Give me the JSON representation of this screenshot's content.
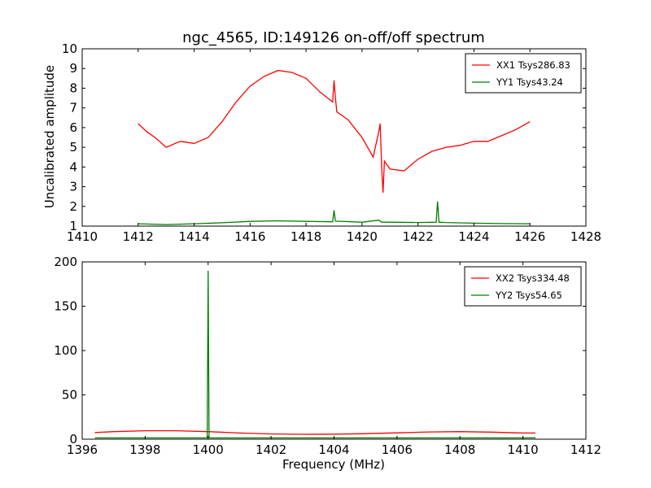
{
  "chart_data": [
    {
      "type": "line",
      "title": "ngc_4565, ID:149126 on-off/off spectrum",
      "xlabel": "",
      "ylabel": "Uncalibrated amplitude",
      "xlim": [
        1410,
        1428
      ],
      "ylim": [
        1,
        10
      ],
      "xticks": [
        1410,
        1412,
        1414,
        1416,
        1418,
        1420,
        1422,
        1424,
        1426,
        1428
      ],
      "yticks": [
        1,
        2,
        3,
        4,
        5,
        6,
        7,
        8,
        9,
        10
      ],
      "legend_position": "top-right",
      "series": [
        {
          "name": "XX1 Tsys286.83",
          "color": "#ff0000",
          "x": [
            1412.0,
            1412.3,
            1412.6,
            1413.0,
            1413.5,
            1414.0,
            1414.5,
            1415.0,
            1415.5,
            1416.0,
            1416.5,
            1417.0,
            1417.5,
            1418.0,
            1418.5,
            1418.95,
            1419.0,
            1419.05,
            1419.1,
            1419.5,
            1420.0,
            1420.4,
            1420.6,
            1420.65,
            1420.7,
            1420.75,
            1420.8,
            1421.0,
            1421.5,
            1422.0,
            1422.5,
            1423.0,
            1423.5,
            1424.0,
            1424.5,
            1425.0,
            1425.5,
            1426.0
          ],
          "values": [
            6.2,
            5.8,
            5.5,
            5.0,
            5.3,
            5.2,
            5.5,
            6.3,
            7.3,
            8.1,
            8.6,
            8.9,
            8.8,
            8.5,
            7.8,
            7.3,
            8.4,
            7.5,
            6.8,
            6.4,
            5.5,
            4.5,
            5.8,
            6.2,
            4.0,
            2.7,
            4.3,
            3.9,
            3.8,
            4.4,
            4.8,
            5.0,
            5.1,
            5.3,
            5.3,
            5.6,
            5.9,
            6.3
          ]
        },
        {
          "name": "YY1 Tsys43.24",
          "color": "#008000",
          "x": [
            1412.0,
            1413.0,
            1414.0,
            1415.0,
            1416.0,
            1417.0,
            1418.0,
            1418.95,
            1419.0,
            1419.05,
            1420.0,
            1420.6,
            1420.7,
            1421.0,
            1422.0,
            1422.65,
            1422.7,
            1422.75,
            1423.0,
            1424.0,
            1425.0,
            1426.0
          ],
          "values": [
            1.12,
            1.08,
            1.12,
            1.17,
            1.24,
            1.27,
            1.24,
            1.22,
            1.8,
            1.25,
            1.2,
            1.3,
            1.2,
            1.2,
            1.18,
            1.2,
            2.25,
            1.2,
            1.18,
            1.15,
            1.13,
            1.12
          ]
        }
      ]
    },
    {
      "type": "line",
      "title": "",
      "xlabel": "Frequency (MHz)",
      "ylabel": "",
      "xlim": [
        1396,
        1412
      ],
      "ylim": [
        0,
        200
      ],
      "xticks": [
        1396,
        1398,
        1400,
        1402,
        1404,
        1406,
        1408,
        1410,
        1412
      ],
      "yticks": [
        0,
        50,
        100,
        150,
        200
      ],
      "legend_position": "top-right",
      "series": [
        {
          "name": "XX2 Tsys334.48",
          "color": "#ff0000",
          "x": [
            1396.4,
            1397.0,
            1398.0,
            1399.0,
            1400.0,
            1401.0,
            1402.0,
            1403.0,
            1404.0,
            1405.0,
            1406.0,
            1407.0,
            1408.0,
            1409.0,
            1410.0,
            1410.4
          ],
          "values": [
            7.5,
            8.5,
            9.5,
            9.5,
            8.5,
            7.0,
            6.0,
            5.5,
            5.7,
            6.2,
            7.2,
            8.2,
            8.5,
            8.0,
            7.0,
            7.0
          ]
        },
        {
          "name": "YY2 Tsys54.65",
          "color": "#008000",
          "x": [
            1396.4,
            1399.0,
            1399.97,
            1400.0,
            1400.03,
            1401.0,
            1404.0,
            1408.0,
            1410.4
          ],
          "values": [
            1.5,
            1.5,
            1.6,
            190,
            1.6,
            1.5,
            1.5,
            1.5,
            1.5
          ]
        }
      ]
    }
  ]
}
